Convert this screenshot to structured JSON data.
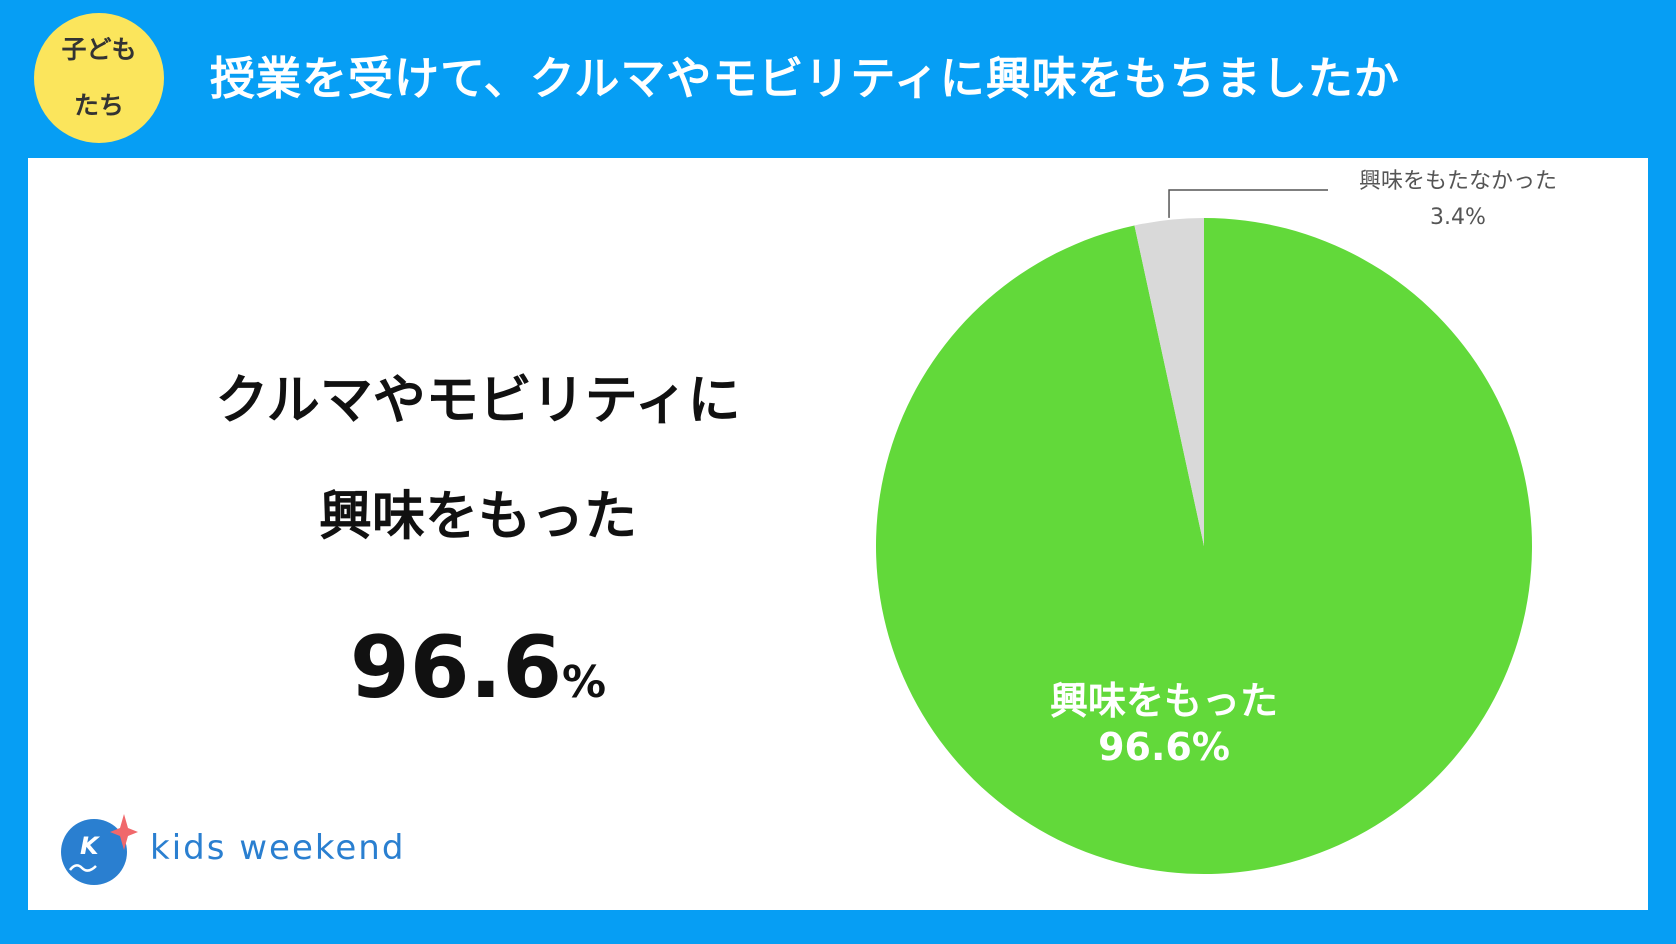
{
  "header": {
    "badge_line1": "子ども",
    "badge_line2": "たち",
    "title": "授業を受けて、クルマやモビリティに興味をもちましたか"
  },
  "highlight": {
    "line1": "クルマやモビリティに",
    "line2": "興味をもった",
    "value": "96.6",
    "unit": "%"
  },
  "logo": {
    "text": "kids weekend",
    "mark_letter": "K"
  },
  "colors": {
    "background": "#069ef4",
    "badge": "#fbe55c",
    "slice_yes": "#62d93a",
    "slice_no": "#d9d9d9",
    "logo_blue": "#2a7fd0",
    "logo_star": "#f0686b"
  },
  "chart_data": {
    "type": "pie",
    "slices": [
      {
        "label": "興味をもった",
        "value": 96.6,
        "value_label": "96.6%",
        "color": "#62d93a"
      },
      {
        "label": "興味をもたなかった",
        "value": 3.4,
        "value_label": "3.4%",
        "color": "#d9d9d9"
      }
    ],
    "start": "12 o'clock",
    "direction": "clockwise"
  }
}
